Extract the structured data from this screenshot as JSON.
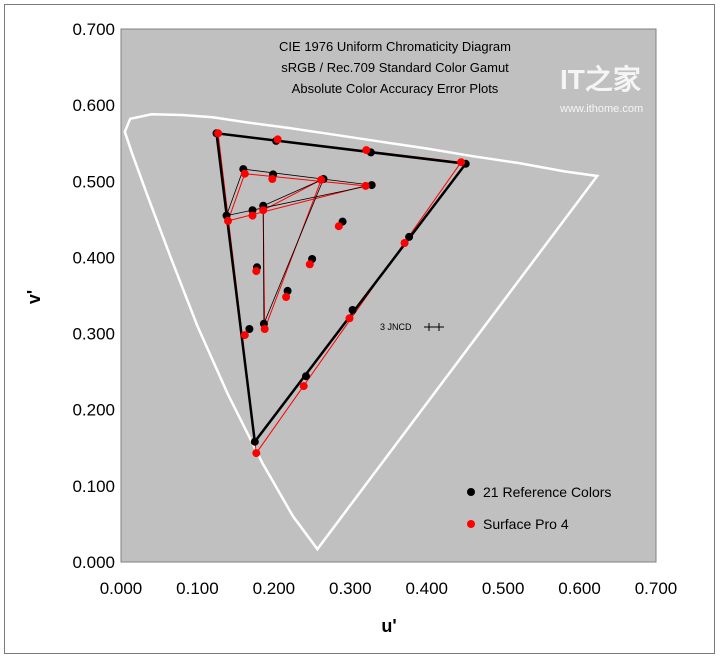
{
  "chart_data": {
    "type": "scatter",
    "title": [
      "CIE 1976 Uniform Chromaticity Diagram",
      "sRGB / Rec.709 Standard Color Gamut",
      "Absolute Color Accuracy Error Plots"
    ],
    "xlabel": "u'",
    "ylabel": "v'",
    "xlim": [
      0,
      0.7
    ],
    "ylim": [
      0,
      0.7
    ],
    "xticks": [
      "0.000",
      "0.100",
      "0.200",
      "0.300",
      "0.400",
      "0.500",
      "0.600",
      "0.700"
    ],
    "yticks": [
      "0.000",
      "0.100",
      "0.200",
      "0.300",
      "0.400",
      "0.500",
      "0.600",
      "0.700"
    ],
    "grid": false,
    "legend_position": "bottom-right",
    "annotation": "3 JNCD",
    "series": [
      {
        "name": "21 Reference Colors",
        "color": "#000000",
        "points": [
          [
            0.451,
            0.523
          ],
          [
            0.175,
            0.158
          ],
          [
            0.125,
            0.563
          ],
          [
            0.327,
            0.538
          ],
          [
            0.203,
            0.553
          ],
          [
            0.377,
            0.427
          ],
          [
            0.303,
            0.331
          ],
          [
            0.242,
            0.244
          ],
          [
            0.168,
            0.306
          ],
          [
            0.138,
            0.455
          ],
          [
            0.328,
            0.495
          ],
          [
            0.16,
            0.516
          ],
          [
            0.265,
            0.503
          ],
          [
            0.187,
            0.313
          ],
          [
            0.186,
            0.468
          ],
          [
            0.172,
            0.462
          ],
          [
            0.199,
            0.509
          ],
          [
            0.29,
            0.447
          ],
          [
            0.25,
            0.398
          ],
          [
            0.218,
            0.356
          ],
          [
            0.178,
            0.387
          ]
        ]
      },
      {
        "name": "Surface Pro 4",
        "color": "#ff0000",
        "points": [
          [
            0.445,
            0.525
          ],
          [
            0.177,
            0.143
          ],
          [
            0.127,
            0.563
          ],
          [
            0.321,
            0.541
          ],
          [
            0.205,
            0.555
          ],
          [
            0.371,
            0.419
          ],
          [
            0.299,
            0.32
          ],
          [
            0.239,
            0.231
          ],
          [
            0.162,
            0.298
          ],
          [
            0.14,
            0.448
          ],
          [
            0.32,
            0.494
          ],
          [
            0.162,
            0.51
          ],
          [
            0.262,
            0.502
          ],
          [
            0.188,
            0.306
          ],
          [
            0.186,
            0.462
          ],
          [
            0.172,
            0.455
          ],
          [
            0.198,
            0.503
          ],
          [
            0.285,
            0.441
          ],
          [
            0.247,
            0.391
          ],
          [
            0.216,
            0.348
          ],
          [
            0.177,
            0.382
          ]
        ]
      }
    ],
    "gamut_triangles": {
      "outer_reference": [
        0,
        1,
        2
      ],
      "middle_reference": [
        9,
        10,
        11
      ],
      "inner_reference": [
        12,
        13,
        14
      ]
    }
  },
  "watermark": {
    "logo_text": "IT之家",
    "url": "www.ithome.com"
  },
  "colors": {
    "plot_background": "#c0c0c0",
    "locus": "#ffffff",
    "reference": "#000000",
    "measured": "#ff0000"
  }
}
